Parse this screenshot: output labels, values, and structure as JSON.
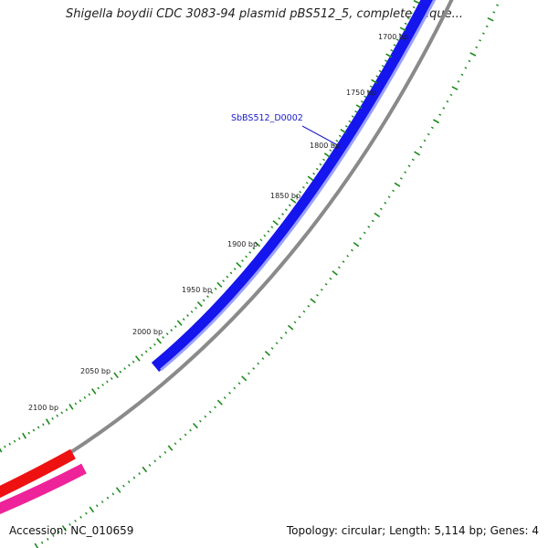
{
  "title": "Shigella boydii CDC 3083-94 plasmid pBS512_5, complete seque...",
  "footer": {
    "accession": "Accession: NC_010659",
    "summary": "Topology: circular; Length: 5,114 bp; Genes: 4"
  },
  "gene_label": "SbBS512_D0002",
  "tick_labels": [
    "1700 bp",
    "1750 bp",
    "1800 bp",
    "1850 bp",
    "1900 bp",
    "1950 bp",
    "2000 bp",
    "2050 bp",
    "2100 bp"
  ],
  "colors": {
    "gene_forward": "#1515ee",
    "gene_highlight": "#9aa0ff",
    "backbone": "#8a8a8a",
    "gene_reverse_red": "#ee1111",
    "gene_reverse_pink": "#ee2299",
    "tick_green": "#1a8a1a",
    "label_blue": "#1a1acc"
  }
}
